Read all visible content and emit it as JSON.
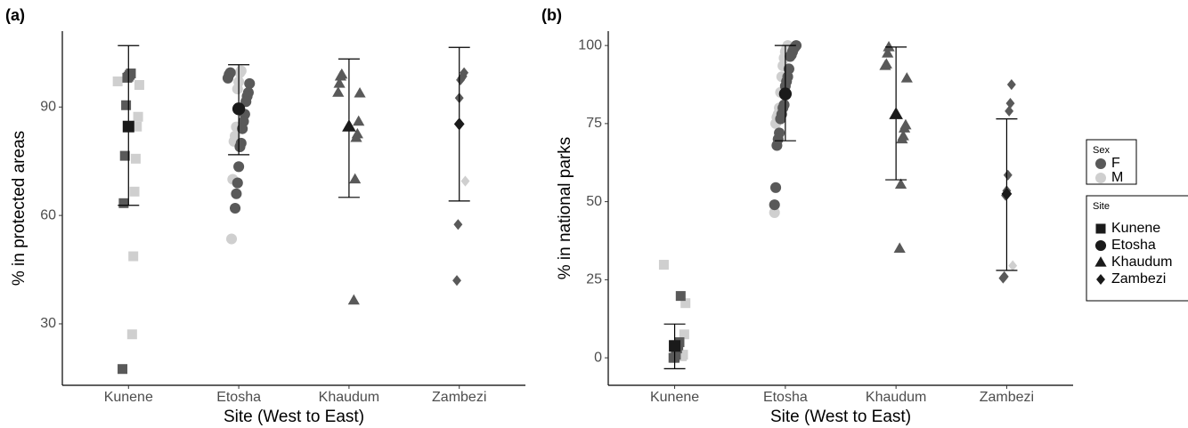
{
  "chart_data": [
    {
      "type": "strip",
      "panel": "(a)",
      "y_label": "% in protected areas",
      "x_label": "Site (West to East)",
      "categories": [
        "Kunene",
        "Etosha",
        "Khaudum",
        "Zambezi"
      ],
      "ylim": [
        13,
        111
      ],
      "yticks": [
        30,
        60,
        90
      ],
      "series": [
        {
          "name": "Kunene",
          "F": [
            99.3,
            98.9,
            98.4,
            98.1,
            90.5,
            76.5,
            63.4,
            17.5
          ],
          "M": [
            97.1,
            96.1,
            87.3,
            84.6,
            75.7,
            66.6,
            48.7,
            27.1
          ],
          "mean": 84.6,
          "lower": 62.8,
          "upper": 107
        },
        {
          "name": "Etosha",
          "F": [
            99.5,
            99,
            98,
            96.5,
            94,
            93,
            91.5,
            88,
            86,
            84,
            80,
            79,
            73.5,
            69,
            66,
            62
          ],
          "M": [
            100,
            99.5,
            97,
            95,
            84.5,
            82,
            80.5,
            70,
            53.5
          ],
          "mean": 89.5,
          "lower": 76.8,
          "upper": 101.7
        },
        {
          "name": "Khaudum",
          "F": [
            99,
            98.5,
            96.5,
            94,
            93.8,
            86,
            82.5,
            81.5,
            70,
            36.5
          ],
          "M": [],
          "mean": 84.6,
          "lower": 65,
          "upper": 103.3
        },
        {
          "name": "Zambezi",
          "F": [
            99.5,
            98.5,
            98,
            97.5,
            92.5,
            57.5,
            42
          ],
          "M": [
            69.5
          ],
          "mean": 85.3,
          "lower": 64,
          "upper": 106.5
        }
      ]
    },
    {
      "type": "strip",
      "panel": "(b)",
      "y_label": "% in national parks",
      "x_label": "Site (West to East)",
      "categories": [
        "Kunene",
        "Etosha",
        "Khaudum",
        "Zambezi"
      ],
      "ylim": [
        -8.8,
        104.6
      ],
      "yticks": [
        0,
        25,
        50,
        75,
        100
      ],
      "series": [
        {
          "name": "Kunene",
          "F": [
            19.8,
            5,
            4,
            3,
            1,
            0,
            0
          ],
          "M": [
            29.8,
            17.5,
            7.5,
            1,
            0.5
          ],
          "mean": 3.8,
          "lower": -3.5,
          "upper": 10.8
        },
        {
          "name": "Etosha",
          "F": [
            100,
            99.5,
            99,
            98,
            97,
            96.5,
            92.5,
            90,
            88.5,
            87,
            81,
            80,
            78,
            76.5,
            72,
            70,
            68,
            54.5,
            49
          ],
          "M": [
            100,
            99,
            98,
            96,
            93.5,
            90,
            85,
            80,
            78,
            77,
            75,
            46.5
          ],
          "mean": 84.5,
          "lower": 69.5,
          "upper": 100
        },
        {
          "name": "Khaudum",
          "F": [
            99.5,
            97.5,
            94,
            93.5,
            89.5,
            74.5,
            73.5,
            71,
            70,
            55.5,
            35
          ],
          "M": [],
          "mean": 78,
          "lower": 57,
          "upper": 99.5
        },
        {
          "name": "Zambezi",
          "F": [
            87.5,
            81.5,
            79,
            58.5,
            53.5,
            52,
            26,
            25.5
          ],
          "M": [
            29.5
          ],
          "mean": 52.5,
          "lower": 28,
          "upper": 76.5
        }
      ]
    }
  ],
  "legend": {
    "sex": {
      "title": "Sex",
      "items": [
        {
          "name": "F",
          "color": "#595959"
        },
        {
          "name": "M",
          "color": "#cfcfcf"
        }
      ]
    },
    "site": {
      "title": "Site",
      "items": [
        {
          "name": "Kunene",
          "shape": "square"
        },
        {
          "name": "Etosha",
          "shape": "circle"
        },
        {
          "name": "Khaudum",
          "shape": "triangle"
        },
        {
          "name": "Zambezi",
          "shape": "diamond"
        }
      ]
    },
    "mean_color": "#1a1a1a"
  }
}
